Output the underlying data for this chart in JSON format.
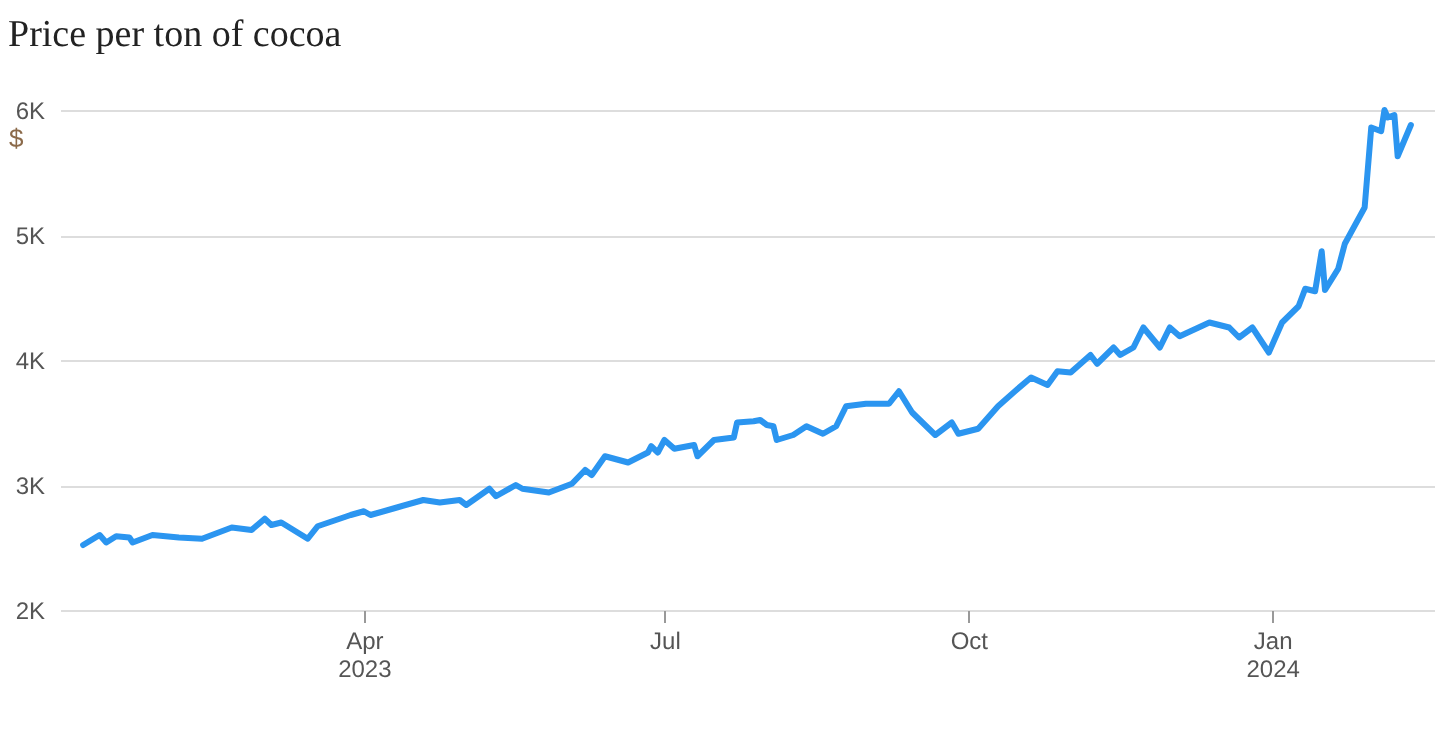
{
  "chart_data": {
    "type": "line",
    "title": "Price per ton of cocoa",
    "ylabel": "$",
    "x": [
      "2023-01-06",
      "2023-01-11",
      "2023-01-13",
      "2023-01-16",
      "2023-01-20",
      "2023-01-21",
      "2023-01-27",
      "2023-02-04",
      "2023-02-11",
      "2023-02-20",
      "2023-02-26",
      "2023-03-02",
      "2023-03-04",
      "2023-03-07",
      "2023-03-15",
      "2023-03-18",
      "2023-03-28",
      "2023-04-01",
      "2023-04-03",
      "2023-04-11",
      "2023-04-19",
      "2023-04-24",
      "2023-04-30",
      "2023-05-02",
      "2023-05-09",
      "2023-05-11",
      "2023-05-17",
      "2023-05-19",
      "2023-05-27",
      "2023-06-03",
      "2023-06-07",
      "2023-06-09",
      "2023-06-13",
      "2023-06-20",
      "2023-06-26",
      "2023-06-27",
      "2023-06-29",
      "2023-07-01",
      "2023-07-04",
      "2023-07-10",
      "2023-07-11",
      "2023-07-16",
      "2023-07-22",
      "2023-07-23",
      "2023-07-28",
      "2023-07-30",
      "2023-08-01",
      "2023-08-03",
      "2023-08-04",
      "2023-08-09",
      "2023-08-13",
      "2023-08-18",
      "2023-08-22",
      "2023-08-25",
      "2023-08-31",
      "2023-09-07",
      "2023-09-10",
      "2023-09-14",
      "2023-09-21",
      "2023-09-26",
      "2023-09-28",
      "2023-10-04",
      "2023-10-10",
      "2023-10-16",
      "2023-10-20",
      "2023-10-25",
      "2023-10-28",
      "2023-11-01",
      "2023-11-07",
      "2023-11-09",
      "2023-11-14",
      "2023-11-16",
      "2023-11-20",
      "2023-11-23",
      "2023-11-28",
      "2023-12-01",
      "2023-12-04",
      "2023-12-13",
      "2023-12-19",
      "2023-12-22",
      "2023-12-26",
      "2023-12-31",
      "2024-01-04",
      "2024-01-09",
      "2024-01-11",
      "2024-01-14",
      "2024-01-16",
      "2024-01-17",
      "2024-01-21",
      "2024-01-23",
      "2024-01-29",
      "2024-01-31",
      "2024-02-03",
      "2024-02-04",
      "2024-02-05",
      "2024-02-07",
      "2024-02-08",
      "2024-02-12"
    ],
    "series": [
      {
        "color": "#2b95f0",
        "values": [
          2520,
          2600,
          2540,
          2590,
          2580,
          2540,
          2600,
          2580,
          2570,
          2660,
          2640,
          2730,
          2680,
          2700,
          2570,
          2670,
          2760,
          2790,
          2760,
          2820,
          2880,
          2860,
          2880,
          2840,
          2970,
          2910,
          3000,
          2970,
          2940,
          3010,
          3120,
          3080,
          3230,
          3180,
          3260,
          3310,
          3260,
          3360,
          3290,
          3320,
          3230,
          3360,
          3380,
          3500,
          3510,
          3520,
          3480,
          3470,
          3360,
          3400,
          3470,
          3410,
          3470,
          3630,
          3650,
          3650,
          3750,
          3580,
          3400,
          3500,
          3410,
          3450,
          3630,
          3770,
          3860,
          3800,
          3910,
          3900,
          4040,
          3970,
          4100,
          4040,
          4100,
          4260,
          4100,
          4260,
          4190,
          4300,
          4260,
          4180,
          4260,
          4060,
          4300,
          4430,
          4570,
          4550,
          4870,
          4560,
          4730,
          4930,
          5220,
          5860,
          5830,
          6000,
          5940,
          5960,
          5630,
          5880
        ]
      }
    ],
    "xlim": [
      "2022-12-30",
      "2024-02-19"
    ],
    "xticks": [
      {
        "value": "2023-04-01",
        "label": "Apr\n2023"
      },
      {
        "value": "2023-07-01",
        "label": "Jul"
      },
      {
        "value": "2023-10-01",
        "label": "Oct"
      },
      {
        "value": "2024-01-01",
        "label": "Jan\n2024"
      }
    ],
    "ylim": [
      2000,
      6000
    ],
    "yticks": [
      {
        "value": 2000,
        "label": "2K"
      },
      {
        "value": 3000,
        "label": "3K"
      },
      {
        "value": 4000,
        "label": "4K"
      },
      {
        "value": 5000,
        "label": "5K"
      },
      {
        "value": 6000,
        "label": "6K"
      }
    ],
    "grid": "y",
    "marker": "none",
    "line_style": "solid"
  }
}
